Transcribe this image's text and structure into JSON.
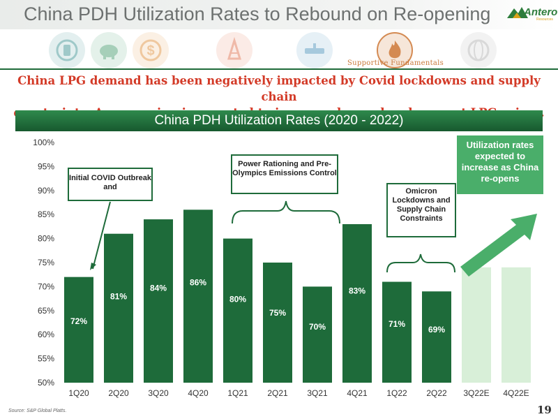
{
  "header": {
    "title": "China PDH Utilization Rates to Rebound on Re-opening",
    "logo_text": "Antero",
    "logo_sub": "Resources"
  },
  "icons": [
    {
      "name": "power-icon",
      "color": "#9fc9c9"
    },
    {
      "name": "piggy-bank-icon",
      "color": "#a6cfb9"
    },
    {
      "name": "dollar-icon",
      "color": "#efc89f"
    },
    {
      "name": "oil-rig-icon",
      "color": "#efb9a8"
    },
    {
      "name": "pipeline-icon",
      "color": "#a6c9dd"
    },
    {
      "name": "flame-icon",
      "color": "#d48a52"
    },
    {
      "name": "globe-icon",
      "color": "#d9d9d9"
    }
  ],
  "icon_caption": "Supportive Fundamentals",
  "subtitle_line1": "China LPG demand has been negatively impacted by Covid lockdowns and supply chain",
  "subtitle_line2": "constraints. A re-opening is expected to increase demand and support LPG prices.",
  "chart_data": {
    "type": "bar",
    "title": "China PDH Utilization Rates (2020 - 2022)",
    "categories": [
      "1Q20",
      "2Q20",
      "3Q20",
      "4Q20",
      "1Q21",
      "2Q21",
      "3Q21",
      "4Q21",
      "1Q22",
      "2Q22",
      "3Q22E",
      "4Q22E"
    ],
    "values": [
      72,
      81,
      84,
      86,
      80,
      75,
      70,
      83,
      71,
      69,
      null,
      null
    ],
    "value_labels": [
      "72%",
      "81%",
      "84%",
      "86%",
      "80%",
      "75%",
      "70%",
      "83%",
      "71%",
      "69%",
      "",
      ""
    ],
    "ylim": [
      50,
      100
    ],
    "yticks": [
      "50%",
      "55%",
      "60%",
      "65%",
      "70%",
      "75%",
      "80%",
      "85%",
      "90%",
      "95%",
      "100%"
    ],
    "bar_color": "#1e6b3a",
    "estimate_color": "#c8e8c8",
    "grid": false
  },
  "callouts": {
    "covid": "Initial COVID Outbreak and",
    "power": "Power Rationing and Pre-Olympics Emissions Control",
    "omicron": "Omicron Lockdowns and Supply Chain Constraints",
    "reopen": "Utilization rates expected to increase as China re-opens"
  },
  "footer": {
    "source": "Source:  S&P Global Platts.",
    "page": "19"
  }
}
